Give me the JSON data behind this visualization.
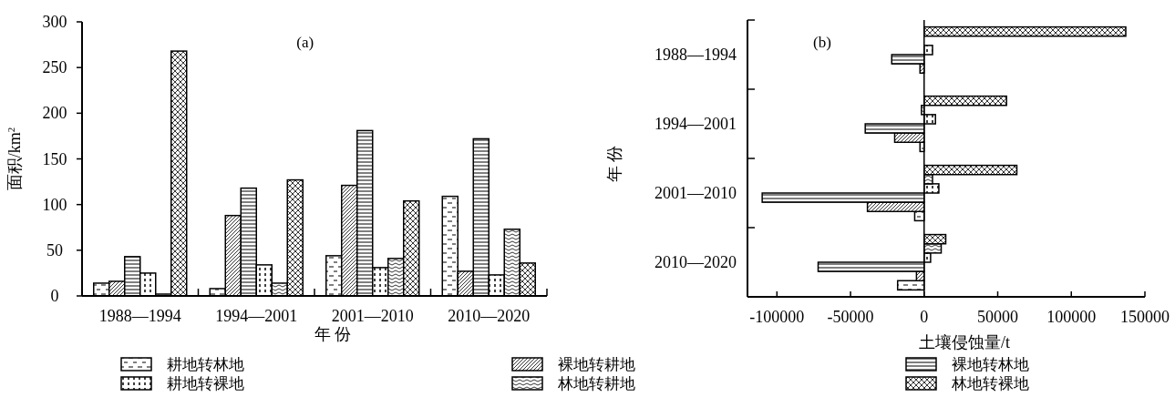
{
  "chart_data": [
    {
      "type": "bar",
      "title": "(a)",
      "xlabel": "年 份",
      "ylabel": "面积/km$^{2}$",
      "categories": [
        "1988—1994",
        "1994—2001",
        "2001—2010",
        "2010—2020"
      ],
      "ylim": [
        0,
        300
      ],
      "yticks": [
        0,
        50,
        100,
        150,
        200,
        250,
        300
      ],
      "legend": "bottom",
      "series": [
        {
          "name": "耕地转林地",
          "color": "#000000",
          "values": [
            14,
            8,
            44,
            109
          ]
        },
        {
          "name": "裸地转耕地",
          "color": "#000000",
          "values": [
            16,
            88,
            121,
            27
          ]
        },
        {
          "name": "裸地转林地",
          "color": "#000000",
          "values": [
            43,
            118,
            181,
            172
          ]
        },
        {
          "name": "耕地转裸地",
          "color": "#000000",
          "values": [
            25,
            34,
            31,
            23
          ]
        },
        {
          "name": "林地转耕地",
          "color": "#000000",
          "values": [
            2,
            14,
            41,
            73
          ]
        },
        {
          "name": "林地转裸地",
          "color": "#000000",
          "values": [
            268,
            127,
            104,
            36
          ]
        }
      ]
    },
    {
      "type": "bar",
      "orientation": "horizontal",
      "title": "(b)",
      "xlabel": "土壤侵蚀量/t",
      "ylabel": "年 份",
      "categories": [
        "1988—1994",
        "1994—2001",
        "2001—2010",
        "2010—2020"
      ],
      "xlim": [
        -120000,
        150000
      ],
      "xticks": [
        -100000,
        -50000,
        0,
        50000,
        100000,
        150000
      ],
      "series": [
        {
          "color": "#000000",
          "values": [
            null,
            -2800,
            -6400,
            -18000
          ]
        },
        {
          "color": "#000000",
          "values": [
            -2800,
            -20000,
            -38500,
            -5200
          ]
        },
        {
          "color": "#000000",
          "values": [
            -22000,
            -40000,
            -110000,
            -72000
          ]
        },
        {
          "color": "#000000",
          "values": [
            5700,
            7700,
            10000,
            4400
          ]
        },
        {
          "color": "#000000",
          "values": [
            0,
            -1800,
            5700,
            11600
          ]
        },
        {
          "color": "#000000",
          "values": [
            137000,
            56000,
            63000,
            14700
          ]
        }
      ]
    }
  ]
}
